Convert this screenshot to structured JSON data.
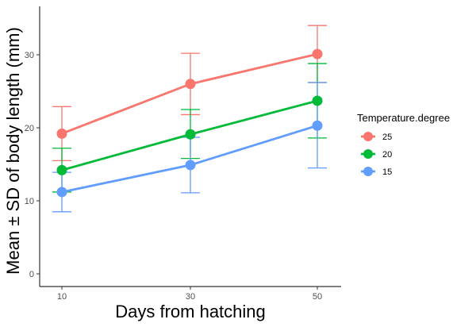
{
  "chart_data": {
    "type": "line",
    "title": "",
    "xlabel": "Days from hatching",
    "ylabel": "Mean ± SD of body length (mm)",
    "x": [
      10,
      30,
      50
    ],
    "x_tick_labels": [
      "10",
      "30",
      "50"
    ],
    "y_ticks": [
      0,
      10,
      20,
      30
    ],
    "y_tick_labels": [
      "0",
      "10",
      "20",
      "30"
    ],
    "ylim": [
      -1.5,
      35.5
    ],
    "grid": false,
    "legend": {
      "title": "Temperature.degree",
      "position": "right"
    },
    "series": [
      {
        "name": "25",
        "color": "#F8766D",
        "values": [
          19.2,
          26.0,
          30.1
        ],
        "lower": [
          15.5,
          21.8,
          26.2
        ],
        "upper": [
          22.9,
          30.2,
          34.0
        ]
      },
      {
        "name": "20",
        "color": "#00BA38",
        "values": [
          14.2,
          19.1,
          23.7
        ],
        "lower": [
          11.2,
          15.8,
          18.6
        ],
        "upper": [
          17.2,
          22.5,
          28.8
        ]
      },
      {
        "name": "15",
        "color": "#619CFF",
        "values": [
          11.2,
          14.9,
          20.3
        ],
        "lower": [
          8.5,
          11.1,
          14.5
        ],
        "upper": [
          13.9,
          18.7,
          26.2
        ]
      }
    ]
  }
}
